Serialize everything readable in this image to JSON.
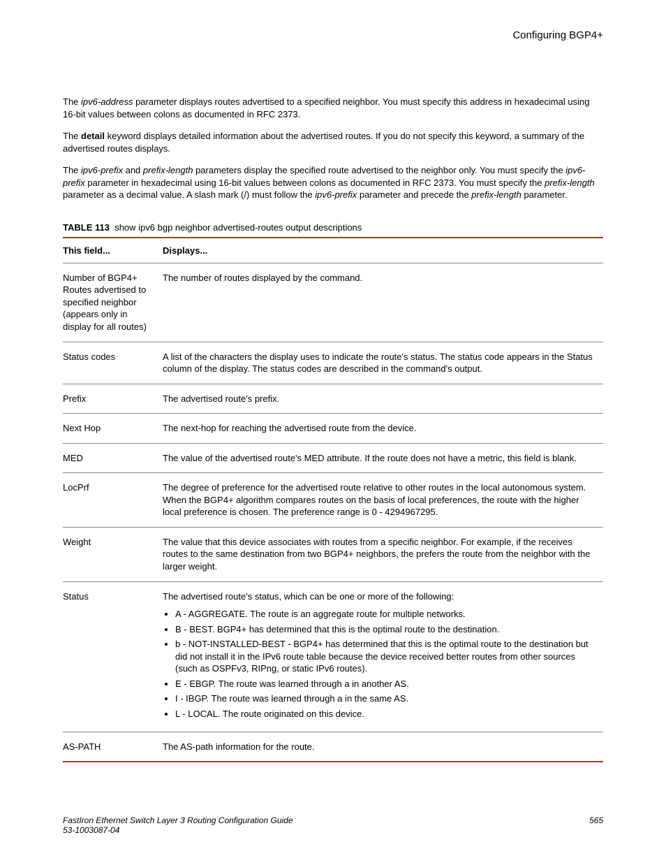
{
  "header": {
    "title": "Configuring BGP4+"
  },
  "paragraphs": {
    "p1_a": "The ",
    "p1_b": "ipv6-address",
    "p1_c": " parameter displays routes advertised to a specified neighbor. You must specify this address in hexadecimal using 16-bit values between colons as documented in RFC 2373.",
    "p2_a": "The ",
    "p2_b": "detail",
    "p2_c": " keyword displays detailed information about the advertised routes. If you do not specify this keyword, a summary of the advertised routes displays.",
    "p3_a": "The ",
    "p3_b": "ipv6-prefix",
    "p3_c": " and ",
    "p3_d": "prefix-length",
    "p3_e": " parameters display the specified route advertised to the neighbor only. You must specify the ",
    "p3_f": "ipv6-prefix",
    "p3_g": " parameter in hexadecimal using 16-bit values between colons as documented in RFC 2373. You must specify the ",
    "p3_h": "prefix-length",
    "p3_i": " parameter as a decimal value. A slash mark (/) must follow the ",
    "p3_j": "ipv6-prefix",
    "p3_k": " parameter and precede the ",
    "p3_l": "prefix-length",
    "p3_m": " parameter."
  },
  "table": {
    "caption_label": "TABLE 113",
    "caption_text": "show ipv6 bgp neighbor advertised-routes output descriptions",
    "col1_header": "This field...",
    "col2_header": "Displays...",
    "rows": {
      "r0": {
        "field": "Number of BGP4+ Routes advertised to specified neighbor (appears only in display for all routes)",
        "desc": "The number of routes displayed by the command."
      },
      "r1": {
        "field": "Status codes",
        "desc": "A list of the characters the display uses to indicate the route's status. The status code appears in the Status column of the display. The status codes are described in the command's output."
      },
      "r2": {
        "field": "Prefix",
        "desc": "The advertised route's prefix."
      },
      "r3": {
        "field": "Next Hop",
        "desc": "The next-hop for reaching the advertised route from the device."
      },
      "r4": {
        "field": "MED",
        "desc": "The value of the advertised route's MED attribute. If the route does not have a metric, this field is blank."
      },
      "r5": {
        "field": "LocPrf",
        "desc": "The degree of preference for the advertised route relative to other routes in the local autonomous system. When the BGP4+ algorithm compares routes on the basis of local preferences, the route with the higher local preference is chosen. The preference range is 0 - 4294967295."
      },
      "r6": {
        "field": "Weight",
        "desc": "The value that this device associates with routes from a specific neighbor. For example, if the receives routes to the same destination from two BGP4+ neighbors, the prefers the route from the neighbor with the larger weight."
      },
      "r7": {
        "field": "Status",
        "intro": "The advertised route's status, which can be one or more of the following:",
        "items": {
          "i0": "A - AGGREGATE. The route is an aggregate route for multiple networks.",
          "i1": "B - BEST. BGP4+ has determined that this is the optimal route to the destination.",
          "i2": "b - NOT-INSTALLED-BEST - BGP4+ has determined that this is the optimal route to the destination but did not install it in the IPv6 route table because the device received better routes from other sources (such as OSPFv3, RIPng, or static IPv6 routes).",
          "i3": "E - EBGP. The route was learned through a in another AS.",
          "i4": "I - IBGP. The route was learned through a in the same AS.",
          "i5": "L - LOCAL. The route originated on this device."
        }
      },
      "r8": {
        "field": "AS-PATH",
        "desc": "The AS-path information for the route."
      }
    }
  },
  "footer": {
    "line1": "FastIron Ethernet Switch Layer 3 Routing Configuration Guide",
    "line2": "53-1003087-04",
    "page": "565"
  },
  "colors": {
    "accent": "#d2232a",
    "text": "#000000",
    "background": "#ffffff",
    "rule": "#888888"
  }
}
